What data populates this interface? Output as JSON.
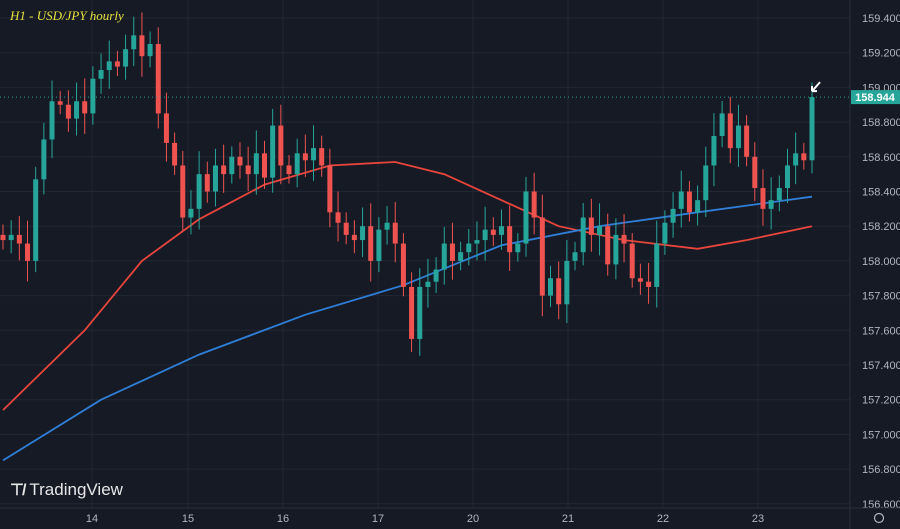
{
  "chart_data": {
    "type": "candlestick",
    "title": "H1 - USD/JPY hourly",
    "x_tick_labels": [
      "14",
      "15",
      "16",
      "17",
      "20",
      "21",
      "22",
      "23"
    ],
    "y_tick_labels": [
      "159.400",
      "159.200",
      "159.000",
      "158.800",
      "158.600",
      "158.400",
      "158.200",
      "158.000",
      "157.800",
      "157.600",
      "157.400",
      "157.200",
      "157.000",
      "156.800",
      "156.600"
    ],
    "ylim": [
      156.6,
      159.48
    ],
    "grid": true,
    "last_price_label": "158.944",
    "last_price": 158.944,
    "colors": {
      "up": "#26a69a",
      "down": "#ef5350",
      "ma_red": "#e8453c",
      "ma_blue": "#2f7fd8",
      "background": "#161a25",
      "title": "#e8e23c"
    },
    "closes": [
      158.12,
      158.15,
      158.1,
      158.0,
      158.47,
      158.7,
      158.92,
      158.9,
      158.82,
      158.92,
      158.85,
      159.05,
      159.1,
      159.15,
      159.12,
      159.22,
      159.3,
      159.18,
      159.25,
      158.85,
      158.68,
      158.55,
      158.25,
      158.3,
      158.5,
      158.4,
      158.55,
      158.5,
      158.6,
      158.55,
      158.5,
      158.62,
      158.48,
      158.78,
      158.55,
      158.5,
      158.62,
      158.58,
      158.65,
      158.55,
      158.28,
      158.22,
      158.15,
      158.12,
      158.2,
      158.0,
      158.18,
      158.22,
      158.1,
      157.85,
      157.55,
      157.85,
      157.88,
      157.95,
      158.1,
      158.0,
      158.05,
      158.1,
      158.12,
      158.18,
      158.15,
      158.2,
      158.05,
      158.1,
      158.4,
      158.25,
      157.8,
      157.9,
      157.75,
      158.0,
      158.05,
      158.25,
      158.15,
      158.2,
      157.98,
      158.15,
      158.1,
      157.9,
      157.88,
      157.85,
      158.1,
      158.22,
      158.3,
      158.4,
      158.28,
      158.35,
      158.55,
      158.72,
      158.85,
      158.65,
      158.78,
      158.6,
      158.42,
      158.3,
      158.35,
      158.42,
      158.55,
      158.62,
      158.58,
      158.944
    ],
    "moving_averages": [
      {
        "color": "#e8453c",
        "points": [
          [
            0,
            157.14
          ],
          [
            10,
            157.6
          ],
          [
            17,
            158.0
          ],
          [
            24,
            158.24
          ],
          [
            32,
            158.44
          ],
          [
            40,
            158.55
          ],
          [
            48,
            158.57
          ],
          [
            54,
            158.5
          ],
          [
            61,
            158.35
          ],
          [
            68,
            158.2
          ],
          [
            76,
            158.12
          ],
          [
            85,
            158.07
          ],
          [
            91,
            158.12
          ],
          [
            99,
            158.2
          ]
        ]
      },
      {
        "color": "#2f7fd8",
        "points": [
          [
            0,
            156.85
          ],
          [
            12,
            157.2
          ],
          [
            24,
            157.46
          ],
          [
            37,
            157.69
          ],
          [
            49,
            157.86
          ],
          [
            61,
            158.09
          ],
          [
            73,
            158.2
          ],
          [
            85,
            158.28
          ],
          [
            99,
            158.37
          ]
        ]
      }
    ],
    "annotation": "arrow pointing to last candle"
  },
  "brand": "TradingView"
}
